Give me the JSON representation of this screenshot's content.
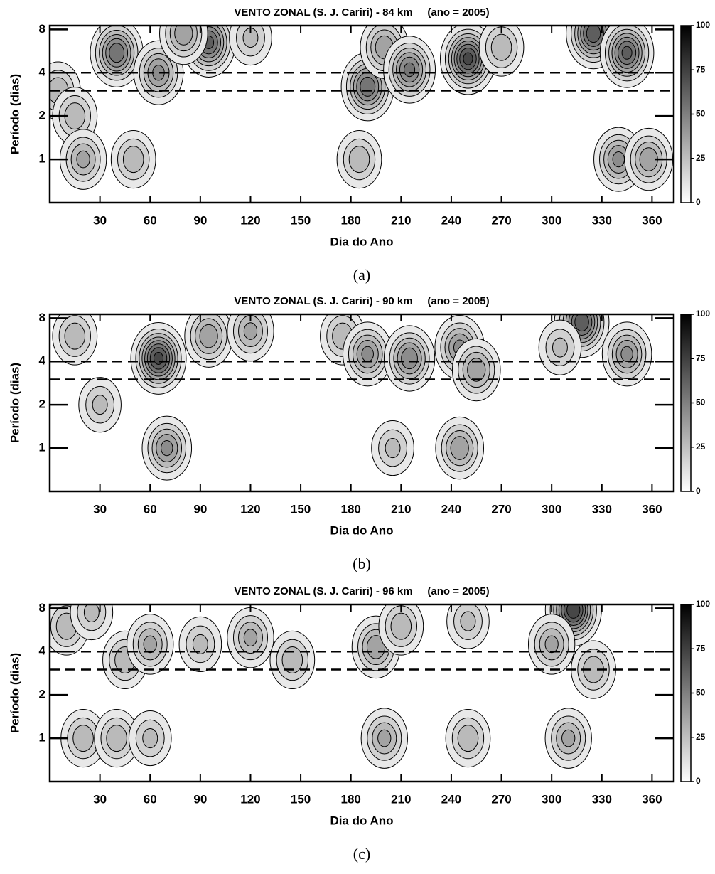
{
  "chart_data": [
    {
      "type": "contour",
      "title": "VENTO ZONAL (S. J. Cariri) - 84 km     (ano = 2005)",
      "xlabel": "Dia do Ano",
      "ylabel": "Período (dias)",
      "caption": "(a)",
      "xlim": [
        0,
        373
      ],
      "xticks": [
        30,
        60,
        90,
        120,
        150,
        180,
        210,
        240,
        270,
        300,
        330,
        360
      ],
      "ylim": [
        0.5,
        8.5
      ],
      "yticks": [
        1,
        2,
        4,
        8
      ],
      "yscale": "log",
      "reference_lines": [
        4,
        3
      ],
      "clim": [
        0,
        100
      ],
      "cticks": [
        0,
        25,
        50,
        75,
        100
      ],
      "peaks": [
        {
          "x": 40,
          "y": 5.5,
          "value": 70
        },
        {
          "x": 65,
          "y": 4,
          "value": 55
        },
        {
          "x": 95,
          "y": 6.5,
          "value": 75
        },
        {
          "x": 80,
          "y": 7.5,
          "value": 50
        },
        {
          "x": 190,
          "y": 3.2,
          "value": 70
        },
        {
          "x": 200,
          "y": 6,
          "value": 50
        },
        {
          "x": 215,
          "y": 4.2,
          "value": 65
        },
        {
          "x": 250,
          "y": 5,
          "value": 85
        },
        {
          "x": 325,
          "y": 7.5,
          "value": 80
        },
        {
          "x": 345,
          "y": 5.5,
          "value": 75
        },
        {
          "x": 5,
          "y": 3,
          "value": 40
        },
        {
          "x": 15,
          "y": 2,
          "value": 40
        },
        {
          "x": 120,
          "y": 7,
          "value": 35
        },
        {
          "x": 185,
          "y": 1,
          "value": 40
        },
        {
          "x": 340,
          "y": 1,
          "value": 55
        },
        {
          "x": 358,
          "y": 1,
          "value": 50
        },
        {
          "x": 20,
          "y": 1,
          "value": 45
        },
        {
          "x": 50,
          "y": 1,
          "value": 40
        },
        {
          "x": 270,
          "y": 6,
          "value": 40
        }
      ]
    },
    {
      "type": "contour",
      "title": "VENTO ZONAL (S. J. Cariri) - 90 km     (ano = 2005)",
      "xlabel": "Dia do Ano",
      "ylabel": "Período (dias)",
      "caption": "(b)",
      "xlim": [
        0,
        373
      ],
      "xticks": [
        30,
        60,
        90,
        120,
        150,
        180,
        210,
        240,
        270,
        300,
        330,
        360
      ],
      "ylim": [
        0.5,
        8.5
      ],
      "yticks": [
        1,
        2,
        4,
        8
      ],
      "yscale": "log",
      "reference_lines": [
        4,
        3
      ],
      "clim": [
        0,
        100
      ],
      "cticks": [
        0,
        25,
        50,
        75,
        100
      ],
      "peaks": [
        {
          "x": 65,
          "y": 4.2,
          "value": 85
        },
        {
          "x": 95,
          "y": 6,
          "value": 50
        },
        {
          "x": 120,
          "y": 6.5,
          "value": 45
        },
        {
          "x": 15,
          "y": 6,
          "value": 40
        },
        {
          "x": 30,
          "y": 2,
          "value": 35
        },
        {
          "x": 175,
          "y": 6,
          "value": 40
        },
        {
          "x": 190,
          "y": 4.5,
          "value": 55
        },
        {
          "x": 215,
          "y": 4.2,
          "value": 60
        },
        {
          "x": 245,
          "y": 5,
          "value": 55
        },
        {
          "x": 255,
          "y": 3.5,
          "value": 50
        },
        {
          "x": 318,
          "y": 7.5,
          "value": 80
        },
        {
          "x": 345,
          "y": 4.5,
          "value": 55
        },
        {
          "x": 305,
          "y": 5,
          "value": 35
        },
        {
          "x": 70,
          "y": 1,
          "value": 55
        },
        {
          "x": 245,
          "y": 1,
          "value": 50
        },
        {
          "x": 205,
          "y": 1,
          "value": 35
        }
      ]
    },
    {
      "type": "contour",
      "title": "VENTO ZONAL (S. J. Cariri) - 96 km     (ano = 2005)",
      "xlabel": "Dia do Ano",
      "ylabel": "Período (dias)",
      "caption": "(c)",
      "xlim": [
        0,
        373
      ],
      "xticks": [
        30,
        60,
        90,
        120,
        150,
        180,
        210,
        240,
        270,
        300,
        330,
        360
      ],
      "ylim": [
        0.5,
        8.5
      ],
      "yticks": [
        1,
        2,
        4,
        8
      ],
      "yscale": "log",
      "reference_lines": [
        4,
        3
      ],
      "clim": [
        0,
        100
      ],
      "cticks": [
        0,
        25,
        50,
        75,
        100
      ],
      "peaks": [
        {
          "x": 10,
          "y": 6,
          "value": 40
        },
        {
          "x": 25,
          "y": 7.5,
          "value": 35
        },
        {
          "x": 45,
          "y": 3.5,
          "value": 40
        },
        {
          "x": 60,
          "y": 4.5,
          "value": 45
        },
        {
          "x": 120,
          "y": 5,
          "value": 45
        },
        {
          "x": 90,
          "y": 4.5,
          "value": 35
        },
        {
          "x": 145,
          "y": 3.5,
          "value": 40
        },
        {
          "x": 195,
          "y": 4.3,
          "value": 50
        },
        {
          "x": 210,
          "y": 6,
          "value": 40
        },
        {
          "x": 250,
          "y": 6.5,
          "value": 35
        },
        {
          "x": 313,
          "y": 7.8,
          "value": 90
        },
        {
          "x": 300,
          "y": 4.5,
          "value": 45
        },
        {
          "x": 325,
          "y": 3,
          "value": 40
        },
        {
          "x": 20,
          "y": 1,
          "value": 40
        },
        {
          "x": 40,
          "y": 1,
          "value": 40
        },
        {
          "x": 60,
          "y": 1,
          "value": 35
        },
        {
          "x": 200,
          "y": 1,
          "value": 45
        },
        {
          "x": 250,
          "y": 1,
          "value": 40
        },
        {
          "x": 310,
          "y": 1,
          "value": 45
        }
      ]
    }
  ]
}
